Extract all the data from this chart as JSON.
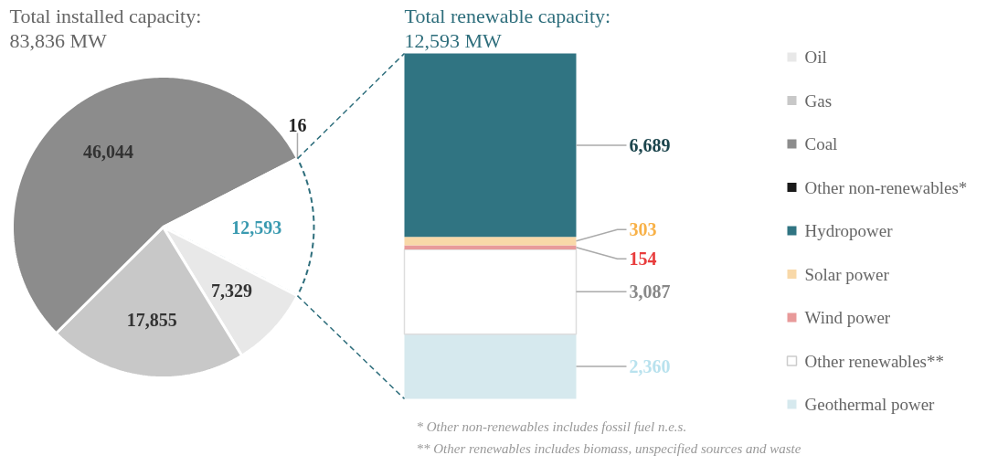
{
  "chart_data": [
    {
      "type": "pie",
      "title": "Total installed capacity:\n83,836 MW",
      "categories": [
        null,
        "Oil",
        "Gas",
        "Coal",
        "Other non-renewables*"
      ],
      "values": [
        12593,
        7329,
        17855,
        46044,
        16
      ],
      "colors": [
        "#ffffff",
        "#e8e8e8",
        "#c8c8c8",
        "#8c8c8c",
        "#1a1a1a"
      ],
      "value_labels": [
        "12,593",
        "7,329",
        "17,855",
        "46,044",
        "16"
      ],
      "legend": "right"
    },
    {
      "type": "bar",
      "title": "Total renewable capacity:\n12,593 MW",
      "categories": [
        null
      ],
      "stacked": true,
      "legend": "right",
      "series": [
        {
          "name": "Geothermal power",
          "color": "#d6e9ee",
          "values": [
            2360
          ],
          "value_labels": [
            "2,360"
          ]
        },
        {
          "name": "Other renewables**",
          "color": "#ffffff",
          "values": [
            3087
          ],
          "value_labels": [
            "3,087"
          ]
        },
        {
          "name": "Wind power",
          "color": "#e89a9a",
          "values": [
            154
          ],
          "value_labels": [
            "154"
          ]
        },
        {
          "name": "Solar power",
          "color": "#f8d8a8",
          "values": [
            303
          ],
          "value_labels": [
            "303"
          ]
        },
        {
          "name": "Hydropower",
          "color": "#307482",
          "values": [
            6689
          ],
          "value_labels": [
            "6,689"
          ]
        }
      ],
      "annotations": [
        "* Other non-renewables includes fossil fuel n.e.s.",
        "** Other renewables includes biomass, unspecified sources and waste"
      ]
    }
  ]
}
